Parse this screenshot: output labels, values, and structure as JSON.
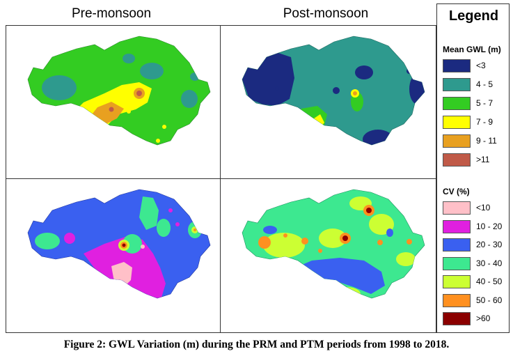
{
  "columns": [
    "Pre-monsoon",
    "Post-monsoon"
  ],
  "legend": {
    "title": "Legend",
    "gwl": {
      "title": "Mean GWL (m)",
      "items": [
        {
          "label": "<3",
          "color": "#1b2a80"
        },
        {
          "label": "4 - 5",
          "color": "#2e9a8e"
        },
        {
          "label": "5 - 7",
          "color": "#33cc22"
        },
        {
          "label": "7 - 9",
          "color": "#ffff00"
        },
        {
          "label": "9 - 11",
          "color": "#e8a020"
        },
        {
          "label": ">11",
          "color": "#c05a48"
        }
      ]
    },
    "cv": {
      "title": "CV (%)",
      "items": [
        {
          "label": "<10",
          "color": "#ffc0c8"
        },
        {
          "label": "10 - 20",
          "color": "#e020e0"
        },
        {
          "label": "20 - 30",
          "color": "#3a60f0"
        },
        {
          "label": "30 - 40",
          "color": "#3de890"
        },
        {
          "label": "40 - 50",
          "color": "#ccff33"
        },
        {
          "label": "50 - 60",
          "color": "#ff9020"
        },
        {
          "label": ">60",
          "color": "#8b0000"
        }
      ]
    }
  },
  "caption": "Figure 2: GWL Variation (m) during the PRM and PTM periods from 1998 to 2018."
}
